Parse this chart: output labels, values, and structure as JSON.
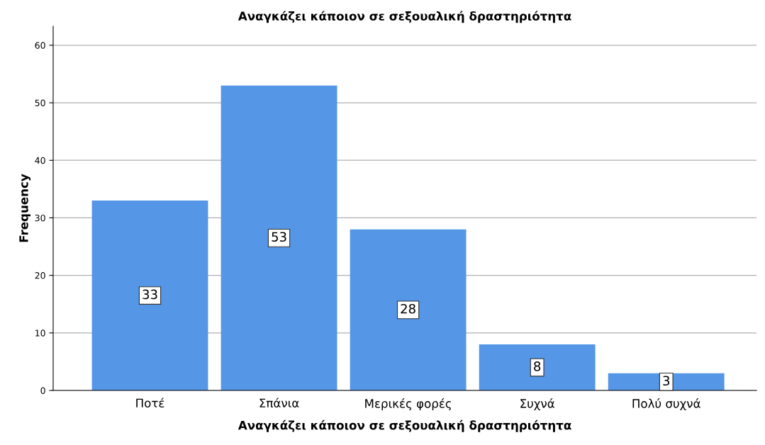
{
  "chart_data": {
    "type": "bar",
    "title": "Αναγκάζει κάποιον σε σεξουαλική δραστηριότητα",
    "xlabel": "Αναγκάζει κάποιον σε σεξουαλική δραστηριότητα",
    "ylabel": "Frequency",
    "categories": [
      "Ποτέ",
      "Σπάνια",
      "Μερικές φορές",
      "Συχνά",
      "Πολύ συχνά"
    ],
    "values": [
      33,
      53,
      28,
      8,
      3
    ],
    "color": "#5596e6",
    "ylim": [
      0,
      63.3
    ],
    "yticks": [
      0,
      10,
      20,
      30,
      40,
      50,
      60
    ],
    "grid": "y",
    "data_labels": true
  }
}
